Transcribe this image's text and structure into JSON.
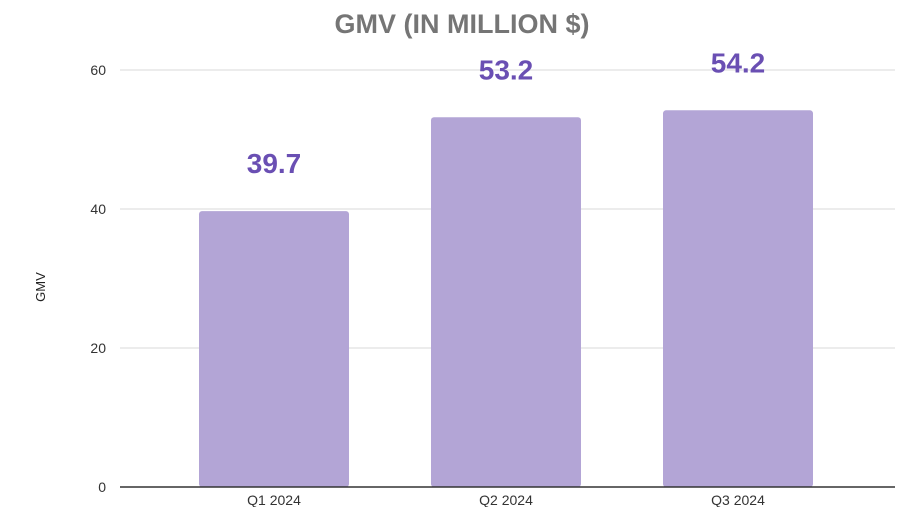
{
  "chart_data": {
    "type": "bar",
    "title": "GMV (IN MILLION $)",
    "xlabel": "",
    "ylabel": "GMV",
    "categories": [
      "Q1 2024",
      "Q2 2024",
      "Q3 2024"
    ],
    "values": [
      39.7,
      53.2,
      54.2
    ],
    "data_labels": [
      "39.7",
      "53.2",
      "54.2"
    ],
    "ylim": [
      0,
      60
    ],
    "yticks": [
      0,
      20,
      40,
      60
    ],
    "grid": true,
    "legend": "none",
    "colors": {
      "bar": "#b3a5d6",
      "data_label": "#6a4fb3",
      "title": "#757575",
      "grid": "#d9d9d9",
      "axis": "#333333"
    }
  }
}
